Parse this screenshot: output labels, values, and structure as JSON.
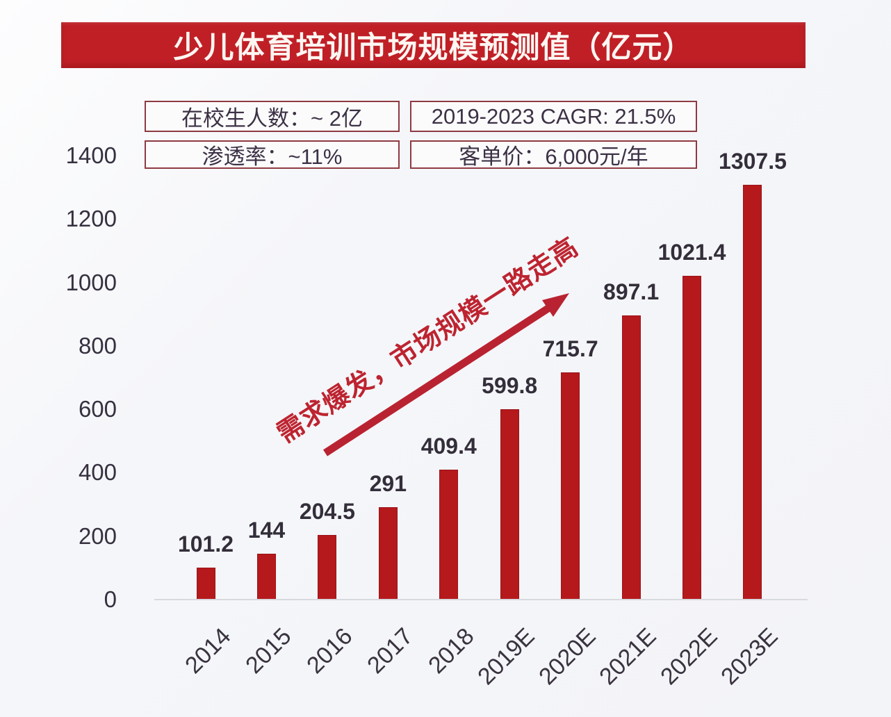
{
  "title": "少儿体育培训市场规模预测值（亿元）",
  "info_boxes": [
    {
      "label": "在校生人数：~ 2亿"
    },
    {
      "label": "2019-2023 CAGR: 21.5%"
    },
    {
      "label": "渗透率：~11%"
    },
    {
      "label": "客单价：6,000元/年"
    }
  ],
  "annotation": {
    "text": "需求爆发，市场规模一路走高"
  },
  "chart_data": {
    "type": "bar",
    "title": "少儿体育培训市场规模预测值（亿元）",
    "categories": [
      "2014",
      "2015",
      "2016",
      "2017",
      "2018",
      "2019E",
      "2020E",
      "2021E",
      "2022E",
      "2023E"
    ],
    "values": [
      101.2,
      144,
      204.5,
      291,
      409.4,
      599.8,
      715.7,
      897.1,
      1021.4,
      1307.5
    ],
    "value_labels": [
      "101.2",
      "144",
      "204.5",
      "291",
      "409.4",
      "599.8",
      "715.7",
      "897.1",
      "1021.4",
      "1307.5"
    ],
    "xlabel": "",
    "ylabel": "",
    "ylim": [
      0,
      1400
    ],
    "yticks": [
      0,
      200,
      400,
      600,
      800,
      1000,
      1200,
      1400
    ],
    "grid": false,
    "legend": "none",
    "bar_color": "#b5191c"
  },
  "colors": {
    "banner_bg": "#c01f26",
    "banner_text": "#fdf6f2",
    "bar": "#b5191c",
    "bar_border": "#9a1418",
    "arrow": "#b92331",
    "annotation_text": "#bd2430",
    "box_border": "#8e3a42",
    "box_text": "#3c3145",
    "tick_text": "#363040",
    "value_text": "#332e3a",
    "axis_line": "#d7d9de",
    "background": "#f4f5f8"
  }
}
